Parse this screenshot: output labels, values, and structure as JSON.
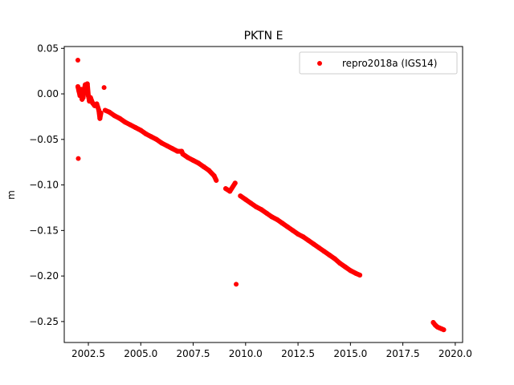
{
  "chart_data": {
    "type": "scatter",
    "title": "PKTN E",
    "xlabel": "",
    "ylabel": "m",
    "xlim": [
      2001.35,
      2020.35
    ],
    "ylim": [
      -0.273,
      0.052
    ],
    "xticks": [
      2002.5,
      2005.0,
      2007.5,
      2010.0,
      2012.5,
      2015.0,
      2017.5,
      2020.0
    ],
    "xtick_labels": [
      "2002.5",
      "2005.0",
      "2007.5",
      "2010.0",
      "2012.5",
      "2015.0",
      "2017.5",
      "2020.0"
    ],
    "yticks": [
      0.05,
      0.0,
      -0.05,
      -0.1,
      -0.15,
      -0.2,
      -0.25
    ],
    "ytick_labels": [
      "0.05",
      "0.00",
      "−0.05",
      "−0.10",
      "−0.15",
      "−0.20",
      "−0.25"
    ],
    "grid": false,
    "legend_position": "top-right",
    "series": [
      {
        "name": "repro2018a (IGS14)",
        "color": "#ff0000",
        "marker": "circle",
        "points": [
          [
            2002.0,
            0.037
          ],
          [
            2002.02,
            -0.071
          ],
          [
            2002.0,
            0.008
          ],
          [
            2002.05,
            0.003
          ],
          [
            2002.1,
            -0.002
          ],
          [
            2002.15,
            0.005
          ],
          [
            2002.2,
            -0.006
          ],
          [
            2002.25,
            -0.004
          ],
          [
            2002.3,
            0.004
          ],
          [
            2002.35,
            0.01
          ],
          [
            2002.4,
            0.008
          ],
          [
            2002.45,
            0.011
          ],
          [
            2002.5,
            -0.002
          ],
          [
            2002.55,
            -0.008
          ],
          [
            2002.6,
            -0.004
          ],
          [
            2002.7,
            -0.01
          ],
          [
            2002.8,
            -0.013
          ],
          [
            2002.9,
            -0.011
          ],
          [
            2003.0,
            -0.018
          ],
          [
            2003.05,
            -0.027
          ],
          [
            2003.1,
            -0.021
          ],
          [
            2003.25,
            0.007
          ],
          [
            2003.3,
            -0.018
          ],
          [
            2003.5,
            -0.02
          ],
          [
            2003.75,
            -0.024
          ],
          [
            2004.0,
            -0.027
          ],
          [
            2004.25,
            -0.031
          ],
          [
            2004.5,
            -0.034
          ],
          [
            2004.75,
            -0.037
          ],
          [
            2005.0,
            -0.04
          ],
          [
            2005.25,
            -0.044
          ],
          [
            2005.5,
            -0.047
          ],
          [
            2005.75,
            -0.05
          ],
          [
            2006.0,
            -0.054
          ],
          [
            2006.25,
            -0.057
          ],
          [
            2006.5,
            -0.06
          ],
          [
            2006.75,
            -0.063
          ],
          [
            2006.95,
            -0.063
          ],
          [
            2007.0,
            -0.066
          ],
          [
            2007.25,
            -0.07
          ],
          [
            2007.5,
            -0.073
          ],
          [
            2007.75,
            -0.076
          ],
          [
            2008.0,
            -0.08
          ],
          [
            2008.25,
            -0.084
          ],
          [
            2008.5,
            -0.09
          ],
          [
            2008.6,
            -0.095
          ],
          [
            2009.05,
            -0.104
          ],
          [
            2009.25,
            -0.107
          ],
          [
            2009.5,
            -0.098
          ],
          [
            2009.55,
            -0.209
          ],
          [
            2009.75,
            -0.112
          ],
          [
            2010.0,
            -0.116
          ],
          [
            2010.25,
            -0.12
          ],
          [
            2010.5,
            -0.124
          ],
          [
            2010.75,
            -0.127
          ],
          [
            2011.0,
            -0.131
          ],
          [
            2011.25,
            -0.135
          ],
          [
            2011.5,
            -0.138
          ],
          [
            2011.75,
            -0.142
          ],
          [
            2012.0,
            -0.146
          ],
          [
            2012.25,
            -0.15
          ],
          [
            2012.5,
            -0.154
          ],
          [
            2012.75,
            -0.157
          ],
          [
            2013.0,
            -0.161
          ],
          [
            2013.25,
            -0.165
          ],
          [
            2013.5,
            -0.169
          ],
          [
            2013.75,
            -0.173
          ],
          [
            2014.0,
            -0.177
          ],
          [
            2014.25,
            -0.181
          ],
          [
            2014.5,
            -0.186
          ],
          [
            2014.75,
            -0.19
          ],
          [
            2015.0,
            -0.194
          ],
          [
            2015.25,
            -0.197
          ],
          [
            2015.45,
            -0.199
          ],
          [
            2018.95,
            -0.251
          ],
          [
            2019.05,
            -0.254
          ],
          [
            2019.15,
            -0.256
          ],
          [
            2019.25,
            -0.257
          ],
          [
            2019.35,
            -0.258
          ],
          [
            2019.45,
            -0.259
          ]
        ]
      }
    ]
  }
}
